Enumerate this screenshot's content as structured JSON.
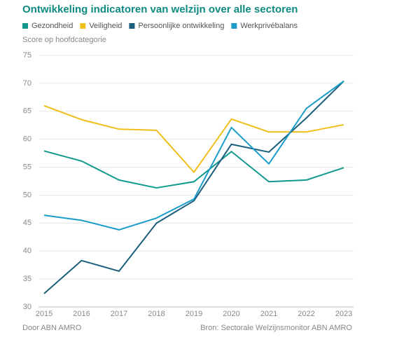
{
  "chart_data": {
    "type": "line",
    "title": "Ontwikkeling indicatoren van welzijn over alle sectoren",
    "y_label": "Score op hoofdcategorie",
    "categories": [
      "2015",
      "2016",
      "2017",
      "2018",
      "2019",
      "2020",
      "2021",
      "2022",
      "2023"
    ],
    "series": [
      {
        "name": "Gezondheid",
        "color": "#10998c",
        "values": [
          57.9,
          56.1,
          52.7,
          51.3,
          52.4,
          57.8,
          52.4,
          52.7,
          54.9
        ]
      },
      {
        "name": "Veiligheid",
        "color": "#f0be1a",
        "values": [
          66.0,
          63.5,
          61.8,
          61.6,
          54.1,
          63.6,
          61.3,
          61.3,
          62.6
        ]
      },
      {
        "name": "Persoonlijke ontwikkeling",
        "color": "#1c5f7c",
        "values": [
          32.4,
          38.3,
          36.4,
          45.0,
          49.0,
          59.1,
          57.7,
          63.8,
          70.4
        ]
      },
      {
        "name": "Werkprivébalans",
        "color": "#1a9cc8",
        "values": [
          46.4,
          45.5,
          43.8,
          45.9,
          49.3,
          62.1,
          55.6,
          65.5,
          70.4
        ]
      }
    ],
    "ylim": [
      30,
      75
    ],
    "yticks": [
      30,
      35,
      40,
      45,
      50,
      55,
      60,
      65,
      70,
      75
    ],
    "grid": true,
    "footer_left": "Door ABN AMRO",
    "footer_right": "Bron: Sectorale Welzijnsmonitor ABN AMRO"
  }
}
